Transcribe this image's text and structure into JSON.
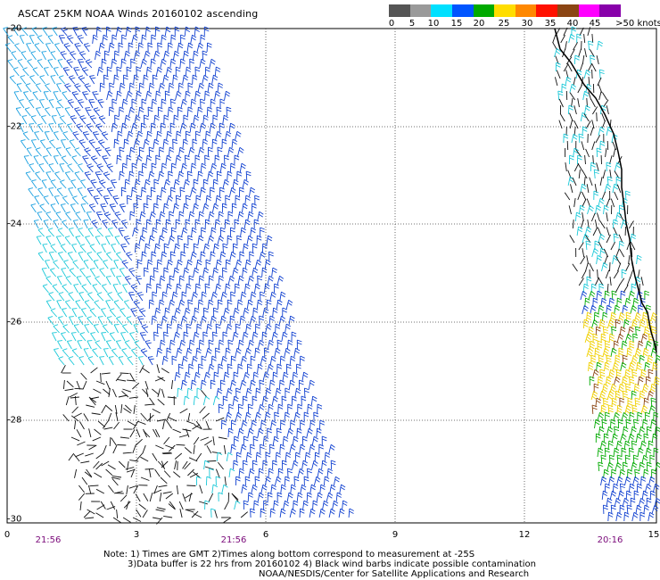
{
  "title": "ASCAT 25KM NOAA Winds 20160102 ascending",
  "colorbar": {
    "labels": [
      "0",
      "5",
      "10",
      "15",
      "20",
      "25",
      "30",
      "35",
      "40",
      "45",
      ">50 knots"
    ],
    "colors": [
      "#555555",
      "#9a9a9a",
      "#00e0ff",
      "#0055ff",
      "#00aa00",
      "#ffdd00",
      "#ff8800",
      "#ff1100",
      "#8b4513",
      "#ff00ff",
      "#8800aa"
    ]
  },
  "axes": {
    "x_ticks": [
      "0",
      "3",
      "6",
      "9",
      "12",
      "15"
    ],
    "y_ticks": [
      "-20",
      "-22",
      "-24",
      "-26",
      "-28",
      "-30"
    ]
  },
  "times": {
    "left_1": "21:56",
    "left_2": "21:56",
    "right": "20:16"
  },
  "notes": {
    "line1": "Note: 1) Times are GMT 2)Times along bottom correspond to measurement at -25S",
    "line2": "3)Data buffer is 22 hrs from 20160102 4) Black wind barbs indicate possible contamination",
    "line3": "NOAA/NESDIS/Center for Satellite Applications and Research"
  }
}
